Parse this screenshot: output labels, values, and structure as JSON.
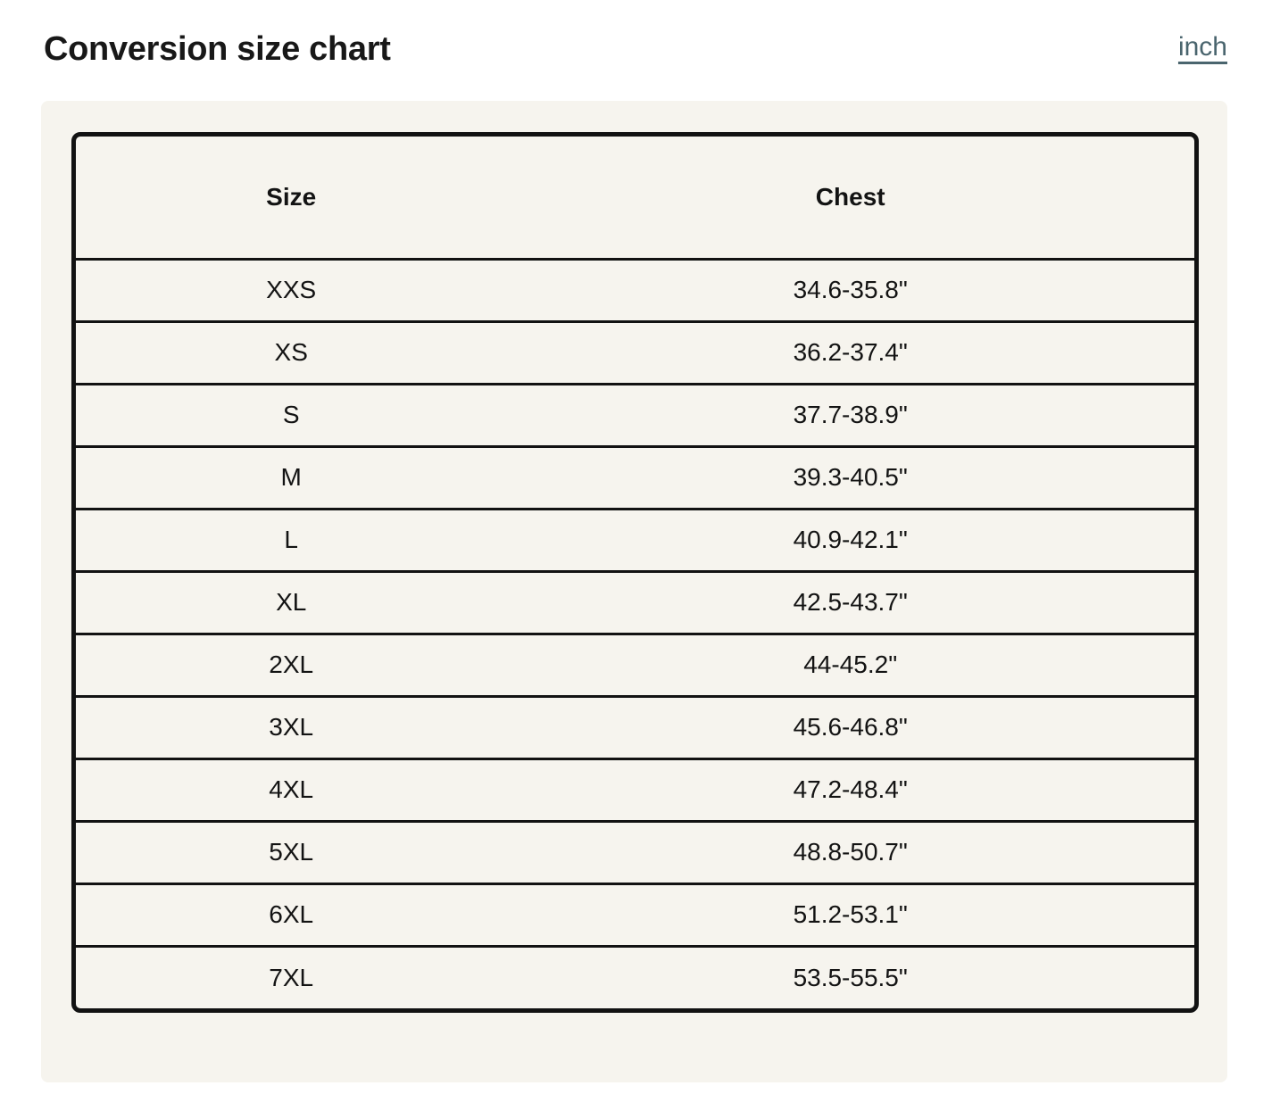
{
  "page": {
    "title": "Conversion size chart",
    "unit_link_label": "inch"
  },
  "colors": {
    "page_bg": "#ffffff",
    "card_bg": "#f6f4ee",
    "table_border": "#121212",
    "text": "#131313",
    "link": "#4a656e"
  },
  "table": {
    "columns": [
      "Size",
      "Chest"
    ],
    "rows": [
      {
        "size": "XXS",
        "chest": "34.6-35.8\""
      },
      {
        "size": "XS",
        "chest": "36.2-37.4\""
      },
      {
        "size": "S",
        "chest": "37.7-38.9\""
      },
      {
        "size": "M",
        "chest": "39.3-40.5\""
      },
      {
        "size": "L",
        "chest": "40.9-42.1\""
      },
      {
        "size": "XL",
        "chest": "42.5-43.7\""
      },
      {
        "size": "2XL",
        "chest": "44-45.2\""
      },
      {
        "size": "3XL",
        "chest": "45.6-46.8\""
      },
      {
        "size": "4XL",
        "chest": "47.2-48.4\""
      },
      {
        "size": "5XL",
        "chest": "48.8-50.7\""
      },
      {
        "size": "6XL",
        "chest": "51.2-53.1\""
      },
      {
        "size": "7XL",
        "chest": "53.5-55.5\""
      }
    ]
  }
}
